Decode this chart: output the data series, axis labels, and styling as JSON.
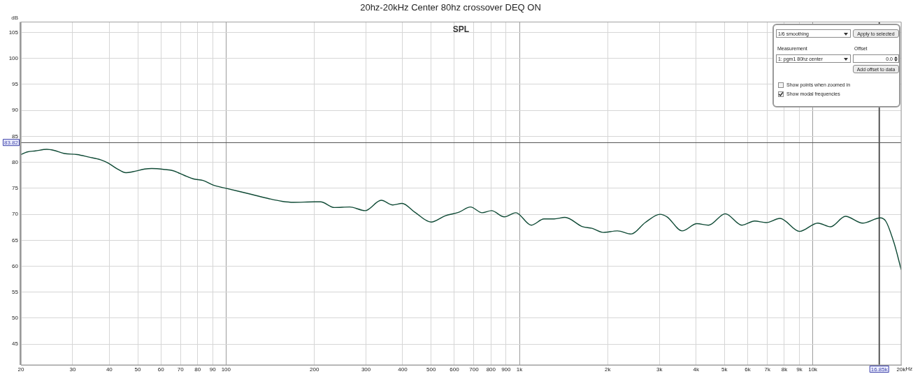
{
  "chart_data": {
    "type": "line",
    "title": "20hz-20kHz Center 80hz crossover DEQ ON",
    "subtitle": "SPL",
    "ylabel": "dB",
    "xlabel": "Hz",
    "log": "x",
    "xlim": [
      20,
      20000
    ],
    "xticks": [
      20,
      30,
      40,
      50,
      60,
      70,
      80,
      90,
      100,
      200,
      300,
      400,
      500,
      600,
      700,
      800,
      900,
      {
        "value": 1000,
        "label": "1k"
      },
      {
        "value": 2000,
        "label": "2k"
      },
      {
        "value": 3000,
        "label": "3k"
      },
      {
        "value": 4000,
        "label": "4k"
      },
      {
        "value": 5000,
        "label": "5k"
      },
      {
        "value": 6000,
        "label": "6k"
      },
      {
        "value": 7000,
        "label": "7k"
      },
      {
        "value": 8000,
        "label": "8k"
      },
      {
        "value": 9000,
        "label": "9k"
      },
      {
        "value": 10000,
        "label": "10k"
      },
      {
        "value": 20000,
        "label": "20k"
      }
    ],
    "ylim": [
      41,
      107
    ],
    "yticks": [
      45,
      50,
      55,
      60,
      65,
      70,
      75,
      80,
      85,
      90,
      95,
      100,
      105
    ],
    "grid": true,
    "marker": "none",
    "line_style": "solid",
    "x": [
      20,
      21,
      22.4,
      24.5,
      25.9,
      28.1,
      31.1,
      34.1,
      37.3,
      39.8,
      42.4,
      45.6,
      48.2,
      52.8,
      55.8,
      62.2,
      65.8,
      72,
      77.6,
      83.5,
      90.6,
      100,
      122.6,
      140,
      155,
      170,
      200,
      210,
      234,
      264,
      298,
      338,
      370,
      398,
      440,
      500,
      558,
      622,
      681,
      746,
      803,
      888,
      972,
      1098,
      1212,
      1314,
      1430,
      1642,
      1766,
      1932,
      2157,
      2404,
      2683,
      3016,
      3186,
      3586,
      4028,
      4408,
      5032,
      5734,
      6334,
      6932,
      7728,
      9012,
      10400,
      11500,
      12920,
      14780,
      16980,
      17760,
      18940,
      20000
    ],
    "series": [
      {
        "color": "#0f4a35",
        "values": [
          81.5,
          82.0,
          82.2,
          82.5,
          82.3,
          81.7,
          81.5,
          81.0,
          80.5,
          79.8,
          78.8,
          78.0,
          78.2,
          78.7,
          78.8,
          78.6,
          78.4,
          77.5,
          76.8,
          76.5,
          75.6,
          75.0,
          73.8,
          73.0,
          72.5,
          72.3,
          72.4,
          72.4,
          71.3,
          71.4,
          70.7,
          72.7,
          71.8,
          72.1,
          70.4,
          68.5,
          69.7,
          70.4,
          71.4,
          70.3,
          70.7,
          69.5,
          70.3,
          67.9,
          69.1,
          69.1,
          69.4,
          67.6,
          67.3,
          66.5,
          66.8,
          66.2,
          68.4,
          70.0,
          69.5,
          66.8,
          68.2,
          67.9,
          70.1,
          67.9,
          68.7,
          68.4,
          69.2,
          66.7,
          68.3,
          67.6,
          69.6,
          68.3,
          69.3,
          68.6,
          64.4,
          59.4
        ]
      }
    ],
    "ref_lines": [
      {
        "axis": "y",
        "value": 83.82,
        "label": "83.82",
        "color": "#555555"
      },
      {
        "axis": "x",
        "value": 16850,
        "label": "16.85k",
        "color": "#555555"
      }
    ],
    "annotations": [
      "1/6 smoothing",
      "Apply to selected",
      "Measurement",
      "Offset",
      "1: pgm1 80hz center",
      "0.0",
      "Add offset to data",
      "Show points when zoomed in",
      "Show modal frequencies"
    ]
  }
}
